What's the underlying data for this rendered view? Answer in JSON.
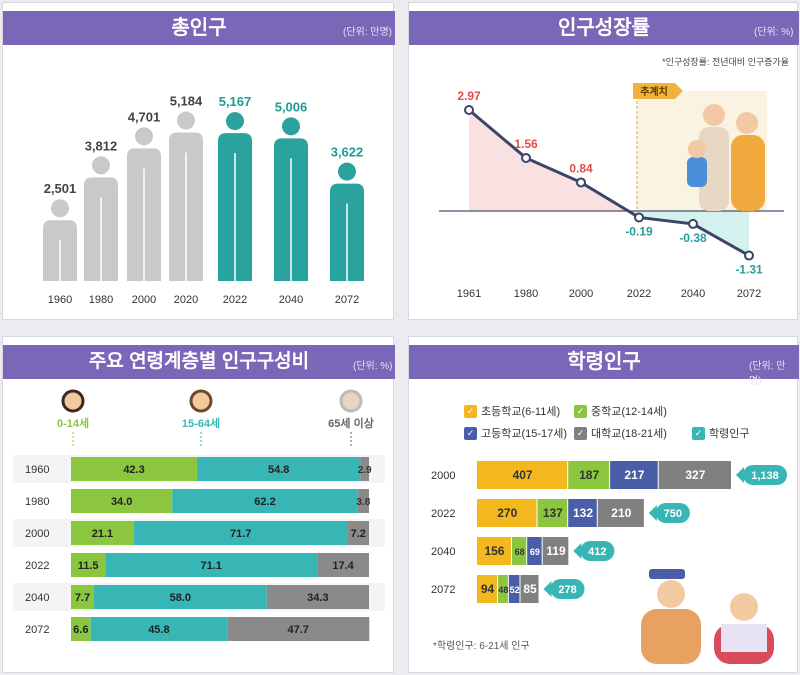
{
  "panel1": {
    "title": "총인구",
    "unit": "(단위: 만명)",
    "chart_data": {
      "type": "bar",
      "categories": [
        "1960",
        "1980",
        "2000",
        "2020",
        "2022",
        "2040",
        "2072"
      ],
      "values": [
        2501,
        3812,
        4701,
        5184,
        5167,
        5006,
        3622
      ],
      "value_labels": [
        "2,501",
        "3,812",
        "4,701",
        "5,184",
        "5,167",
        "5,006",
        "3,622"
      ],
      "projected_from_index": 4,
      "colors": {
        "actual": "#c9c9cb",
        "projected": "#2aa39e",
        "actual_label": "#444444",
        "projected_label": "#1f9a95"
      }
    }
  },
  "panel2": {
    "title": "인구성장률",
    "unit": "(단위: %)",
    "note": "*인구성장률: 전년대비 인구증가율",
    "badge": "추계치",
    "chart_data": {
      "type": "line",
      "x": [
        "1961",
        "1980",
        "2000",
        "2022",
        "2040",
        "2072"
      ],
      "y": [
        2.97,
        1.56,
        0.84,
        -0.19,
        -0.38,
        -1.31
      ],
      "value_labels": [
        "2.97",
        "1.56",
        "0.84",
        "-0.19",
        "-0.38",
        "-1.31"
      ],
      "colors": {
        "positive": "#e34c4c",
        "negative": "#2a9c9a",
        "line": "#3d4566"
      }
    }
  },
  "panel3": {
    "title": "주요 연령계층별 인구구성비",
    "unit": "(단위: %)",
    "groups": [
      "0-14세",
      "15-64세",
      "65세 이상"
    ],
    "chart_data": {
      "type": "bar",
      "orientation": "horizontal-stacked",
      "categories": [
        "1960",
        "1980",
        "2000",
        "2022",
        "2040",
        "2072"
      ],
      "series": [
        {
          "name": "0-14세",
          "values": [
            42.3,
            34.0,
            21.1,
            11.5,
            7.7,
            6.6
          ],
          "color": "#8cc63f"
        },
        {
          "name": "15-64세",
          "values": [
            54.8,
            62.2,
            71.7,
            71.1,
            58.0,
            45.8
          ],
          "color": "#38b6b5"
        },
        {
          "name": "65세 이상",
          "values": [
            2.9,
            3.8,
            7.2,
            17.4,
            34.3,
            47.7
          ],
          "color": "#8a8a8a"
        }
      ],
      "labels": [
        [
          "42.3",
          "34.0",
          "21.1",
          "11.5",
          "7.7",
          "6.6"
        ],
        [
          "54.8",
          "62.2",
          "71.7",
          "71.1",
          "58.0",
          "45.8"
        ],
        [
          "2.9",
          "3.8",
          "7.2",
          "17.4",
          "34.3",
          "47.7"
        ]
      ]
    }
  },
  "panel4": {
    "title": "학령인구",
    "unit": "(단위: 만명)",
    "note": "*학령인구: 6-21세 인구",
    "legend": [
      "초등학교(6-11세)",
      "중학교(12-14세)",
      "고등학교(15-17세)",
      "대학교(18-21세)",
      "학령인구"
    ],
    "chart_data": {
      "type": "bar",
      "orientation": "horizontal-stacked",
      "categories": [
        "2000",
        "2022",
        "2040",
        "2072"
      ],
      "series": [
        {
          "name": "초등학교(6-11세)",
          "values": [
            407,
            270,
            156,
            94
          ],
          "color": "#f2b81e"
        },
        {
          "name": "중학교(12-14세)",
          "values": [
            187,
            137,
            68,
            48
          ],
          "color": "#8cc63f"
        },
        {
          "name": "고등학교(15-17세)",
          "values": [
            217,
            132,
            69,
            52
          ],
          "color": "#4a5ea8"
        },
        {
          "name": "대학교(18-21세)",
          "values": [
            327,
            210,
            119,
            85
          ],
          "color": "#808080"
        }
      ],
      "labels": [
        [
          "407",
          "270",
          "156",
          "94"
        ],
        [
          "187",
          "137",
          "68",
          "48"
        ],
        [
          "217",
          "132",
          "69",
          "52"
        ],
        [
          "327",
          "210",
          "119",
          "85"
        ]
      ],
      "totals": [
        1138,
        750,
        412,
        278
      ],
      "total_labels": [
        "1,138",
        "750",
        "412",
        "278"
      ],
      "total_color": "#38b6b5"
    }
  }
}
